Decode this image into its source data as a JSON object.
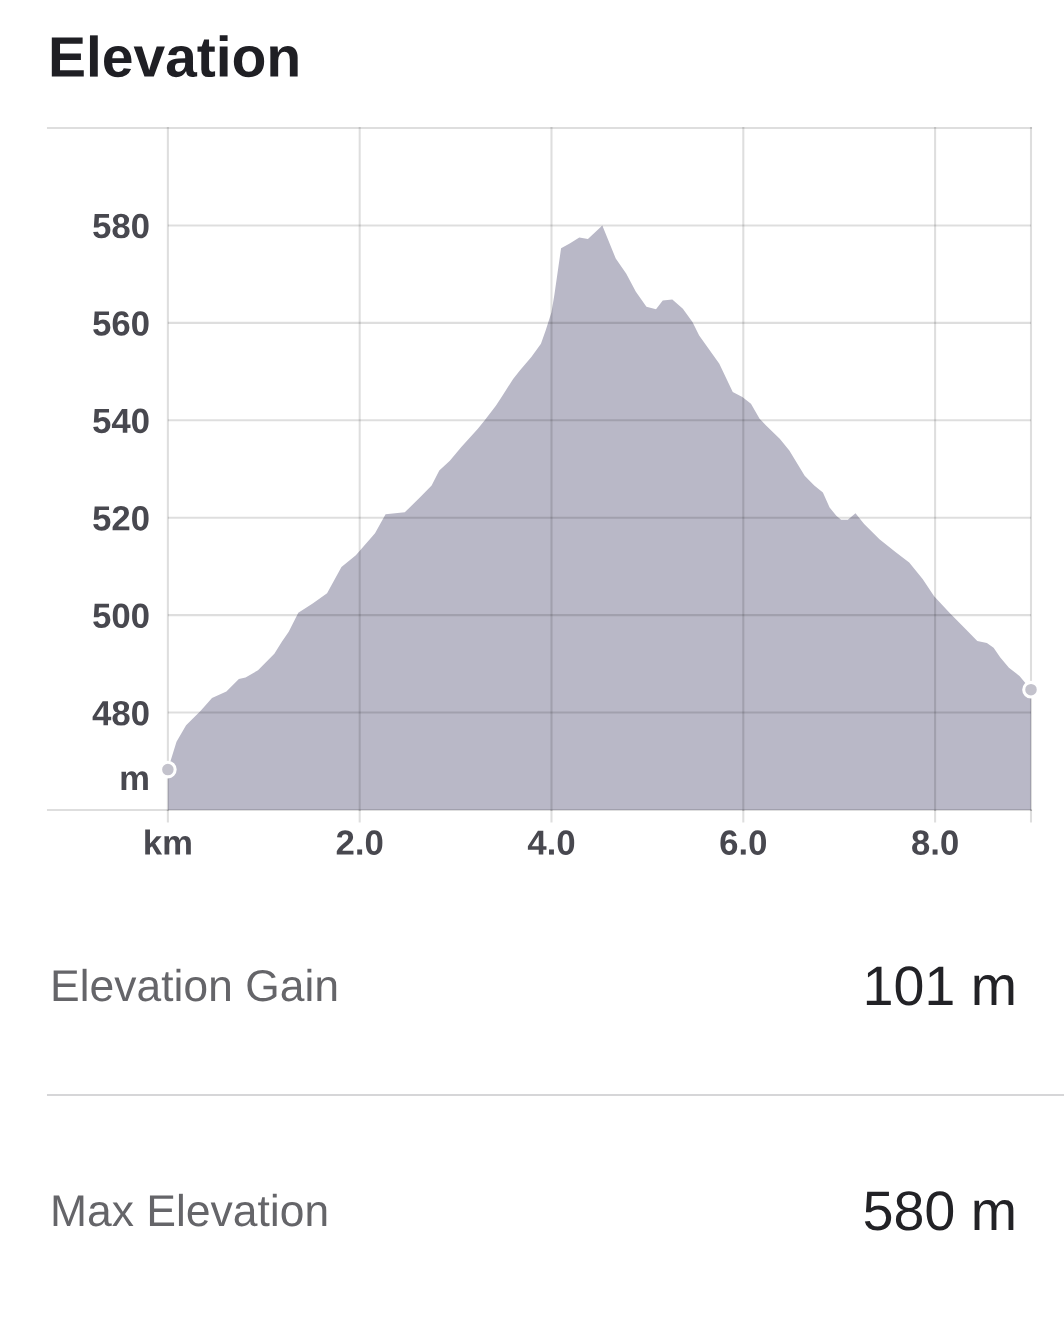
{
  "chart_data": [
    {
      "type": "area",
      "title": "Elevation",
      "ylabel": "m",
      "x": [
        0.0,
        0.09,
        0.19,
        0.34,
        0.46,
        0.61,
        0.74,
        0.81,
        0.94,
        1.11,
        1.19,
        1.26,
        1.36,
        1.51,
        1.66,
        1.81,
        1.96,
        2.16,
        2.27,
        2.47,
        2.63,
        2.75,
        2.83,
        2.94,
        3.06,
        3.23,
        3.3,
        3.42,
        3.48,
        3.6,
        3.67,
        3.79,
        3.89,
        3.94,
        4.0,
        4.03,
        4.07,
        4.1,
        4.19,
        4.29,
        4.38,
        4.53,
        4.67,
        4.78,
        4.88,
        4.99,
        5.09,
        5.16,
        5.26,
        5.37,
        5.47,
        5.54,
        5.75,
        5.89,
        5.99,
        6.08,
        6.17,
        6.24,
        6.38,
        6.48,
        6.64,
        6.74,
        6.83,
        6.9,
        6.97,
        7.02,
        7.09,
        7.17,
        7.26,
        7.42,
        7.59,
        7.73,
        7.87,
        7.99,
        8.15,
        8.32,
        8.44,
        8.54,
        8.61,
        8.68,
        8.77,
        8.88,
        9.0
      ],
      "series": [
        {
          "type": "area",
          "color": "#b9b8c7",
          "values": [
            468.3,
            474.0,
            477.4,
            480.3,
            483.0,
            484.3,
            486.9,
            487.2,
            488.7,
            492.1,
            494.6,
            496.6,
            500.5,
            502.4,
            504.5,
            509.9,
            512.3,
            516.8,
            520.7,
            521.1,
            524.2,
            526.6,
            529.7,
            531.7,
            534.5,
            538.2,
            539.9,
            543.0,
            544.8,
            548.5,
            550.2,
            553.0,
            555.7,
            558.5,
            562.2,
            565.7,
            571.2,
            575.3,
            576.3,
            577.5,
            577.2,
            580.0,
            573.2,
            570.1,
            566.4,
            563.3,
            562.8,
            564.6,
            564.8,
            562.9,
            560.2,
            557.4,
            551.6,
            545.8,
            544.8,
            543.4,
            540.3,
            538.9,
            536.2,
            533.8,
            528.6,
            526.6,
            525.2,
            522.1,
            520.4,
            519.6,
            519.6,
            520.9,
            518.7,
            515.6,
            512.9,
            510.8,
            507.4,
            503.9,
            500.5,
            497.1,
            494.7,
            494.3,
            493.3,
            491.3,
            489.2,
            487.5,
            484.7
          ]
        },
        {
          "type": "scatter",
          "color": "#c3c2cc",
          "marker": "circle",
          "x": [
            0.0,
            9.0
          ],
          "values": [
            468.3,
            484.7
          ]
        }
      ],
      "xlim": [
        -1.25,
        9.0
      ],
      "ylim": [
        460,
        600
      ],
      "xticks": [
        {
          "value": 0,
          "label": "km"
        },
        {
          "value": 2,
          "label": "2.0"
        },
        {
          "value": 4,
          "label": "4.0"
        },
        {
          "value": 6,
          "label": "6.0"
        },
        {
          "value": 8,
          "label": "8.0"
        },
        {
          "value": 9,
          "label": null
        }
      ],
      "yticks": [
        480,
        500,
        520,
        540,
        560,
        580
      ],
      "grid": true
    },
    {
      "type": "other",
      "annotations": [
        "Elevation Gain",
        "101 m",
        "Max Elevation",
        "580 m"
      ]
    }
  ]
}
